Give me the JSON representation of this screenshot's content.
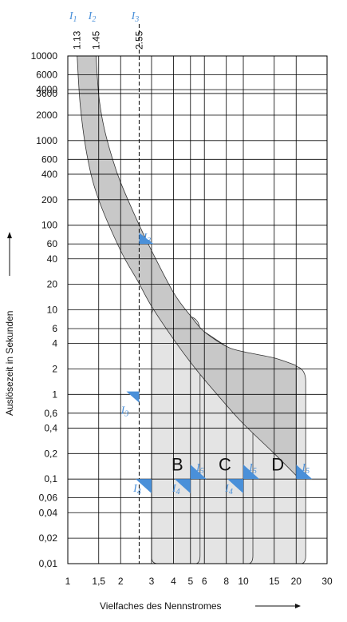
{
  "chart_data": {
    "type": "area",
    "xlabel": "Vielfaches des Nennstromes",
    "ylabel": "Auslösezeit in Sekunden",
    "x_scale": "log",
    "y_scale": "log",
    "xlim": [
      1,
      30
    ],
    "ylim": [
      0.01,
      10000
    ],
    "grid": true,
    "x_ticks": [
      {
        "v": 1,
        "label": "1"
      },
      {
        "v": 1.5,
        "label": "1,5"
      },
      {
        "v": 2,
        "label": "2"
      },
      {
        "v": 3,
        "label": "3"
      },
      {
        "v": 4,
        "label": "4"
      },
      {
        "v": 5,
        "label": "5"
      },
      {
        "v": 6,
        "label": "6"
      },
      {
        "v": 8,
        "label": "8"
      },
      {
        "v": 10,
        "label": "10"
      },
      {
        "v": 15,
        "label": "15"
      },
      {
        "v": 20,
        "label": "20"
      },
      {
        "v": 30,
        "label": "30"
      }
    ],
    "y_ticks": [
      {
        "v": 10000,
        "label": "10000"
      },
      {
        "v": 6000,
        "label": "6000"
      },
      {
        "v": 4000,
        "label": "4000"
      },
      {
        "v": 3600,
        "label": "3600"
      },
      {
        "v": 2000,
        "label": "2000"
      },
      {
        "v": 1000,
        "label": "1000"
      },
      {
        "v": 600,
        "label": "600"
      },
      {
        "v": 400,
        "label": "400"
      },
      {
        "v": 200,
        "label": "200"
      },
      {
        "v": 100,
        "label": "100"
      },
      {
        "v": 60,
        "label": "60"
      },
      {
        "v": 40,
        "label": "40"
      },
      {
        "v": 20,
        "label": "20"
      },
      {
        "v": 10,
        "label": "10"
      },
      {
        "v": 6,
        "label": "6"
      },
      {
        "v": 4,
        "label": "4"
      },
      {
        "v": 2,
        "label": "2"
      },
      {
        "v": 1,
        "label": "1"
      },
      {
        "v": 0.6,
        "label": "0,6"
      },
      {
        "v": 0.4,
        "label": "0,4"
      },
      {
        "v": 0.2,
        "label": "0,2"
      },
      {
        "v": 0.1,
        "label": "0,1"
      },
      {
        "v": 0.06,
        "label": "0,06"
      },
      {
        "v": 0.04,
        "label": "0,04"
      },
      {
        "v": 0.02,
        "label": "0,02"
      },
      {
        "v": 0.01,
        "label": "0,01"
      }
    ],
    "top_markers": [
      {
        "symbol": "I",
        "sub": "1",
        "value_label": "1.13",
        "x": 1.13
      },
      {
        "symbol": "I",
        "sub": "2",
        "value_label": "1.45",
        "x": 1.45
      },
      {
        "symbol": "I",
        "sub": "3",
        "value_label": "2.55",
        "x": 2.55
      }
    ],
    "thermal_band": {
      "upper": [
        [
          1.45,
          10000
        ],
        [
          1.5,
          3500
        ],
        [
          1.6,
          1500
        ],
        [
          1.8,
          600
        ],
        [
          2,
          320
        ],
        [
          2.5,
          110
        ],
        [
          3,
          50
        ],
        [
          4,
          16
        ],
        [
          5,
          8.5
        ],
        [
          6,
          5.5
        ],
        [
          8,
          3.7
        ],
        [
          10,
          3.2
        ],
        [
          15,
          2.7
        ],
        [
          20,
          2.2
        ]
      ],
      "lower": [
        [
          1.13,
          10000
        ],
        [
          1.18,
          2500
        ],
        [
          1.3,
          600
        ],
        [
          1.5,
          200
        ],
        [
          2,
          50
        ],
        [
          2.5,
          22
        ],
        [
          3,
          11
        ],
        [
          4,
          4.5
        ],
        [
          5,
          2.4
        ],
        [
          6,
          1.5
        ],
        [
          8,
          0.75
        ],
        [
          10,
          0.45
        ],
        [
          15,
          0.2
        ],
        [
          20,
          0.11
        ]
      ]
    },
    "series": [
      {
        "name": "B",
        "magnetic_range": [
          3,
          5
        ]
      },
      {
        "name": "C",
        "magnetic_range": [
          5,
          10
        ]
      },
      {
        "name": "D",
        "magnetic_range": [
          10,
          20
        ]
      }
    ],
    "test_markers": [
      {
        "symbol": "I",
        "sub": "3",
        "x": 2.55,
        "y": 60
      },
      {
        "symbol": "I",
        "sub": "3",
        "x": 2.55,
        "y": 0.8
      },
      {
        "symbol": "I",
        "sub": "4",
        "x": 3,
        "y": 0.1
      },
      {
        "symbol": "I",
        "sub": "5",
        "x": 5,
        "y": 0.1
      },
      {
        "symbol": "I",
        "sub": "4",
        "x": 5,
        "y": 0.1
      },
      {
        "symbol": "I",
        "sub": "5",
        "x": 10,
        "y": 0.1
      },
      {
        "symbol": "I",
        "sub": "4",
        "x": 10,
        "y": 0.1
      },
      {
        "symbol": "I",
        "sub": "5",
        "x": 20,
        "y": 0.1
      }
    ],
    "colors": {
      "thermal_band": "#c8c8c8",
      "magnetic_region": "#e4e4e4",
      "marker": "#4a90d9",
      "grid": "#000000"
    }
  }
}
